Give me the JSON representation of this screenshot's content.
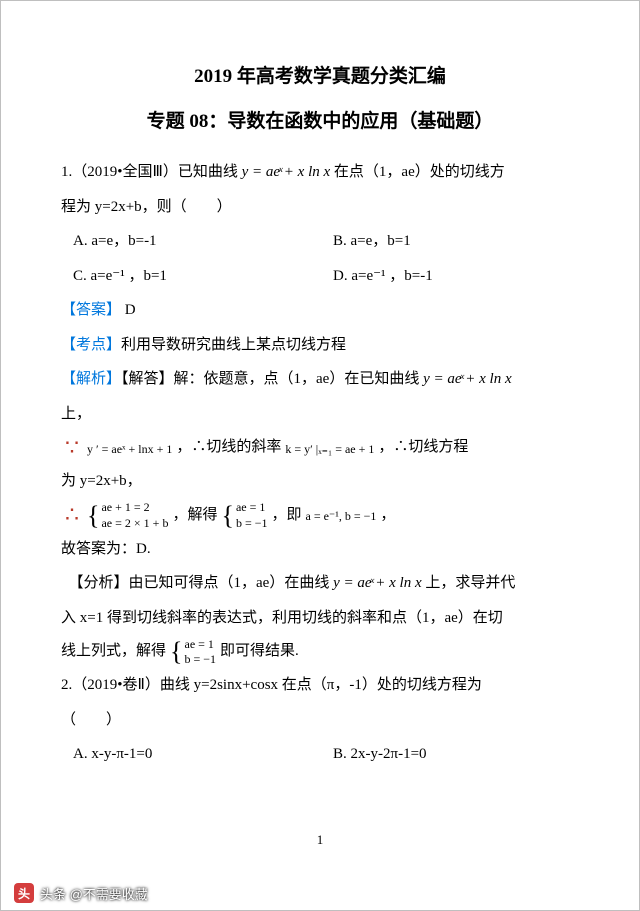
{
  "title1": "2019 年高考数学真题分类汇编",
  "title2": "专题 08：导数在函数中的应用（基础题）",
  "q1": {
    "stem_a": "1.（2019•全国Ⅲ）已知曲线 ",
    "stem_formula": "y = aeͯ + x ln x",
    "stem_b": " 在点（1，ae）处的切线方",
    "stem_c": "程为 y=2x+b，则（　　）",
    "optA": "A. a=e，b=-1",
    "optB": "B. a=e，b=1",
    "optC": "C. a=e⁻¹ ，b=1",
    "optD": "D. a=e⁻¹ ，b=-1",
    "ans_label": "【答案】",
    "ans_val": " D",
    "kd_label": "【考点】",
    "kd_val": "利用导数研究曲线上某点切线方程",
    "jx_label": "【解析】",
    "jx_a": "【解答】解：依题意，点（1，ae）在已知曲线 ",
    "jx_a_formula": "y = aeͯ + x ln x",
    "jx_b": "上，",
    "line1_f1": "y ′ = aeˣ + lnx + 1",
    "line1_t1": "，∴切线的斜率 ",
    "line1_f2": "k = y′ |ₓ₌₁ = ae + 1",
    "line1_t2": "，∴切线方程",
    "line2": "为 y=2x+b，",
    "br1_a": "ae + 1 = 2",
    "br1_b": "ae = 2 × 1 + b",
    "mid1": "，解得 ",
    "br2_a": "ae = 1",
    "br2_b": "b = −1",
    "mid2": "，即 ",
    "res": "a = e⁻¹, b = −1",
    "mid3": " ，",
    "conc": "故答案为：D.",
    "fx_a": "　【分析】由已知可得点（1，ae）在曲线 ",
    "fx_formula": "y = aeͯ + x ln x",
    "fx_b": " 上，求导并代",
    "fx_c": "入 x=1 得到切线斜率的表达式，利用切线的斜率和点（1，ae）在切",
    "fx_d": "线上列式，解得 ",
    "fx_br_a": "ae = 1",
    "fx_br_b": "b = −1",
    "fx_e": " 即可得结果."
  },
  "q2": {
    "stem_a": "2.（2019•卷Ⅱ）曲线 y=2sinx+cosx 在点（π，-1）处的切线方程为",
    "stem_b": "（　　）",
    "optA": "A. x-y-π-1=0",
    "optB": "B. 2x-y-2π-1=0"
  },
  "pagenum": "1",
  "watermark": "头条 @不需要收藏",
  "colors": {
    "blue": "#0077dd",
    "red": "#d94040",
    "maroon": "#b83a2a",
    "border": "#bfbfbf",
    "wm_icon": "#d43d3d"
  }
}
